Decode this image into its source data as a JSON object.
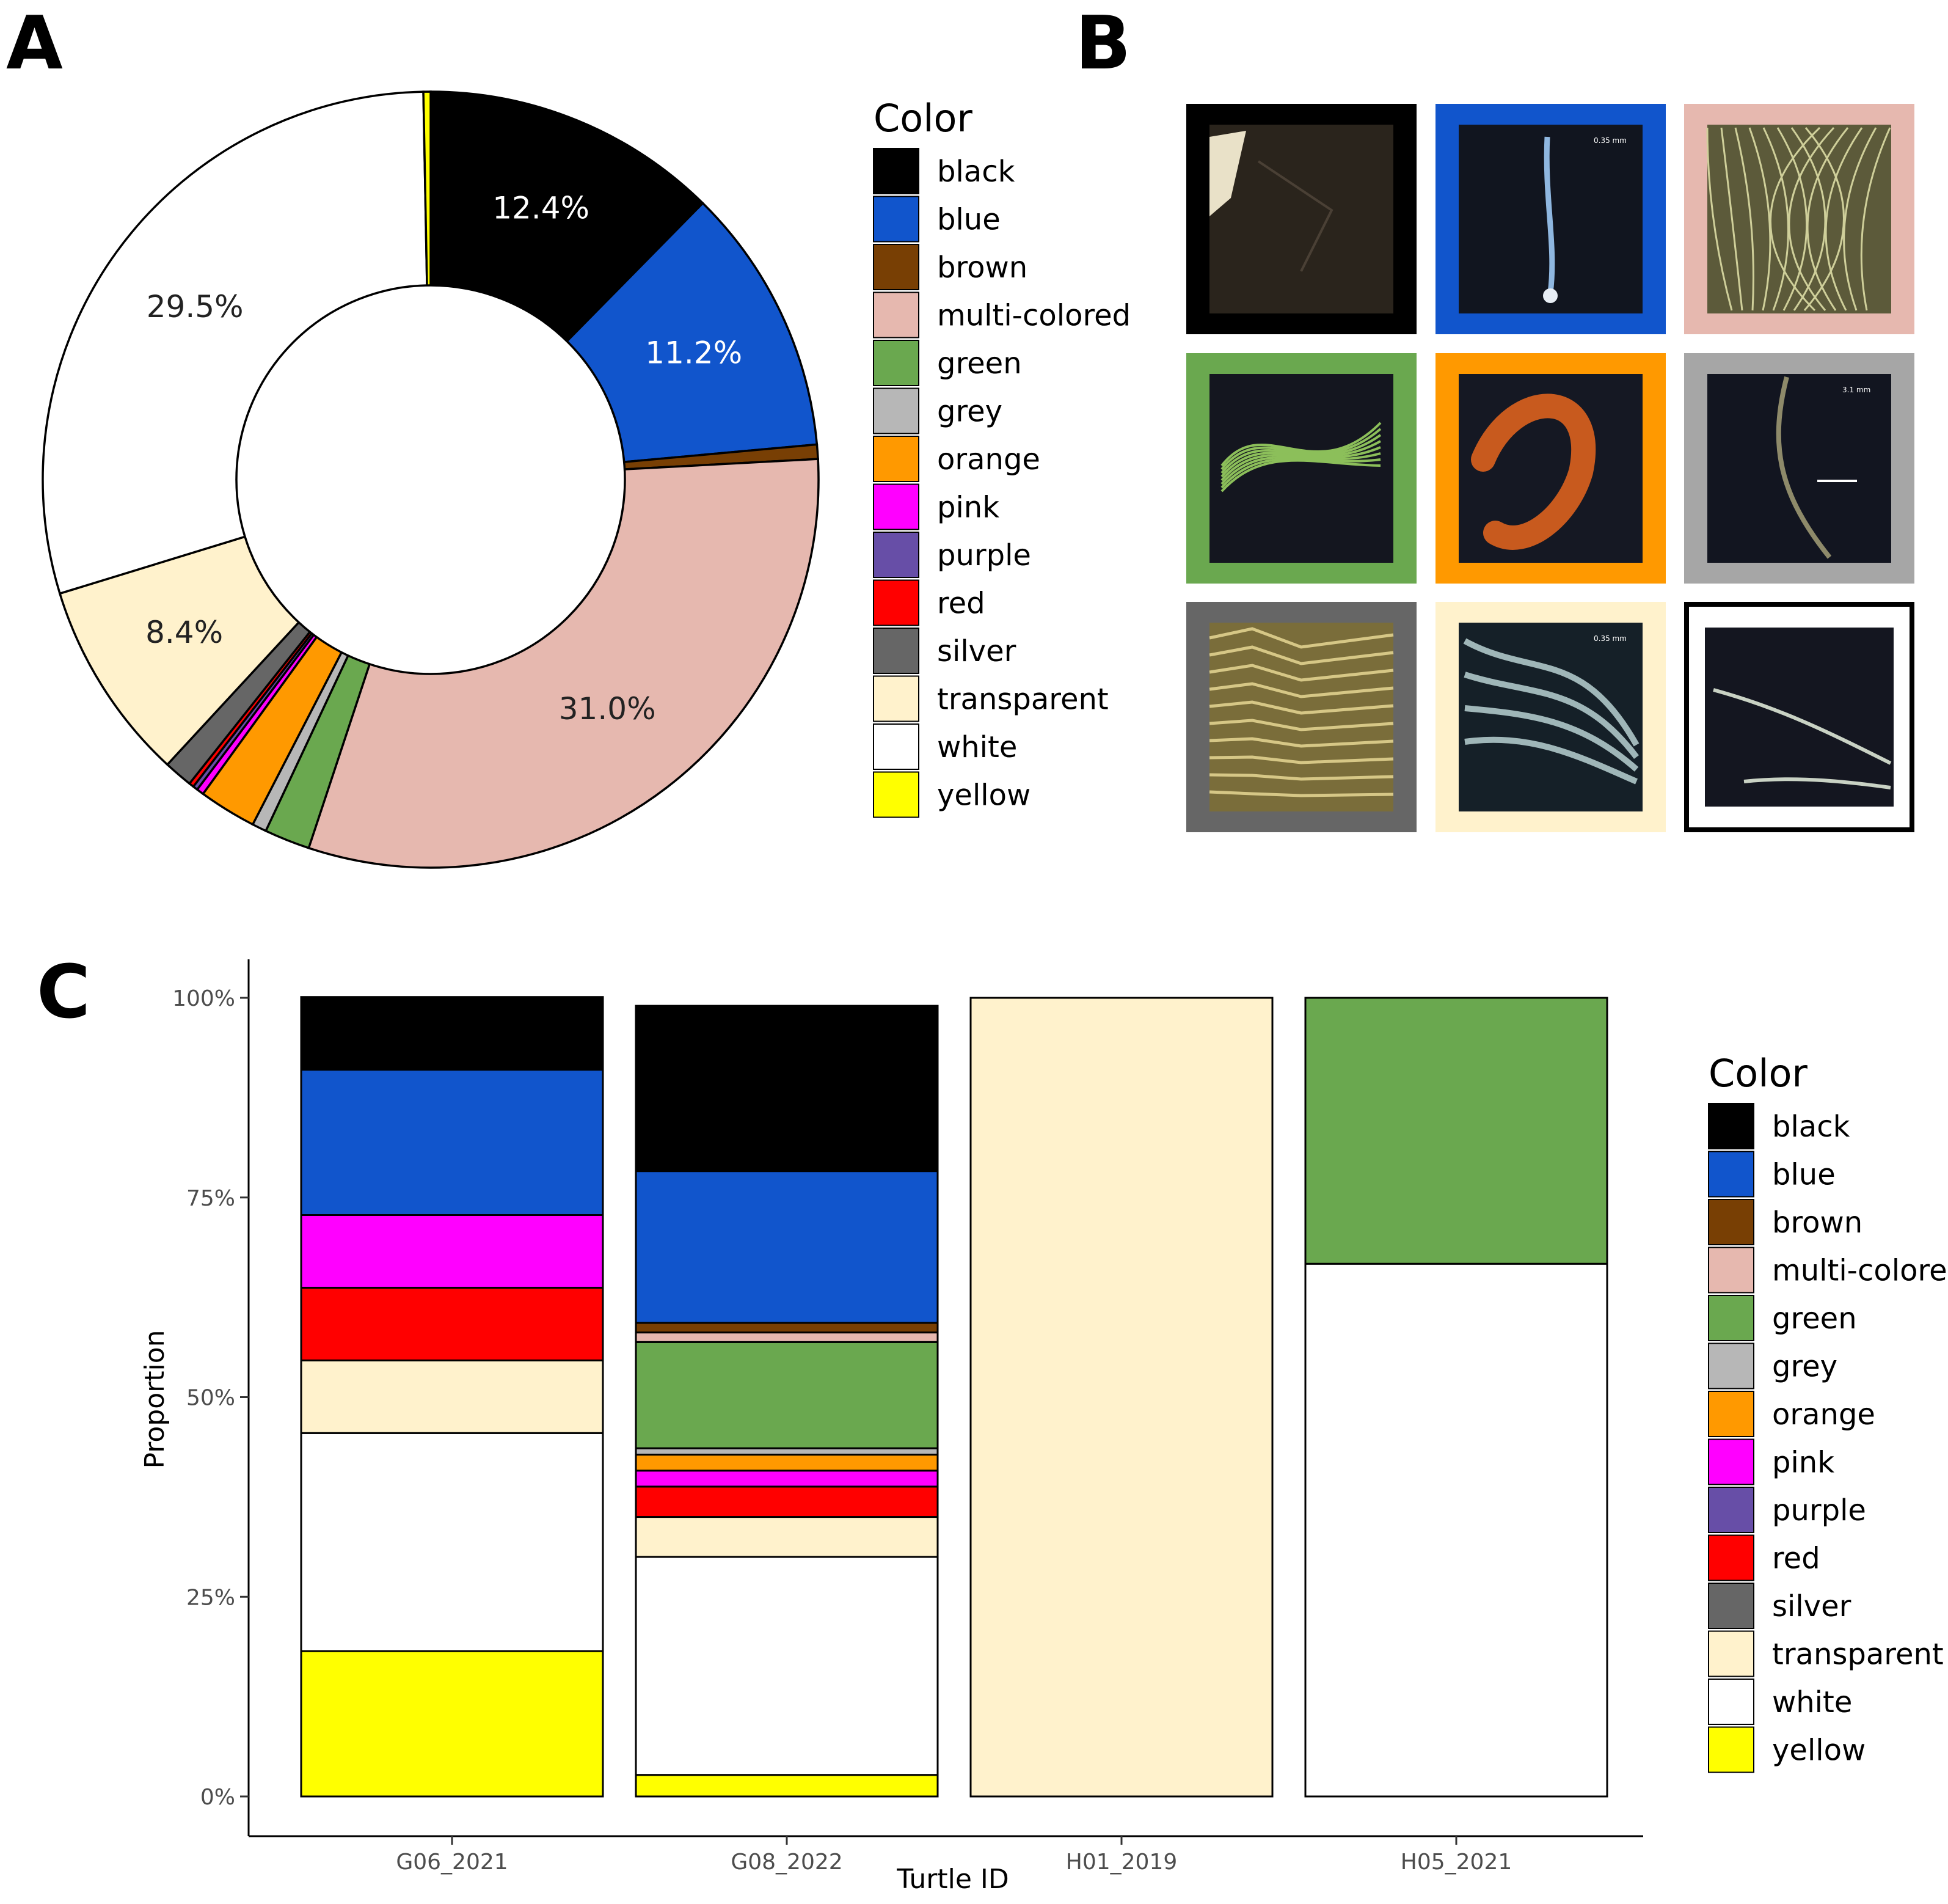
{
  "panels": {
    "a": "A",
    "b": "B",
    "c": "C"
  },
  "colors": {
    "black": "#000000",
    "blue": "#1155cc",
    "brown": "#783f04",
    "multi-colored": "#e6b8af",
    "green": "#6aa84f",
    "grey": "#b7b7b7",
    "orange": "#ff9900",
    "pink": "#ff00ff",
    "purple": "#674ea7",
    "red": "#ff0000",
    "silver": "#666666",
    "transparent": "#fff2cc",
    "white": "#ffffff",
    "yellow": "#ffff00"
  },
  "legend": {
    "title": "Color",
    "items": [
      "black",
      "blue",
      "brown",
      "multi-colored",
      "green",
      "grey",
      "orange",
      "pink",
      "purple",
      "red",
      "silver",
      "transparent",
      "white",
      "yellow"
    ]
  },
  "photo_grid": [
    {
      "label": "black",
      "frame": "#000000",
      "bg": "#2a241c",
      "scale_text": ""
    },
    {
      "label": "blue",
      "frame": "#1155cc",
      "bg": "#11151f",
      "scale_text": "0.35 mm"
    },
    {
      "label": "multi-colored",
      "frame": "#e6b8af",
      "bg": "#5c5a3a",
      "scale_text": ""
    },
    {
      "label": "green",
      "frame": "#6aa84f",
      "bg": "#14161f",
      "scale_text": ""
    },
    {
      "label": "orange",
      "frame": "#ff9900",
      "bg": "#151823",
      "scale_text": ""
    },
    {
      "label": "grey",
      "frame": "#a6a6a6",
      "bg": "#121520",
      "scale_text": "3.1 mm"
    },
    {
      "label": "silver",
      "frame": "#666666",
      "bg": "#7a6d3a",
      "scale_text": ""
    },
    {
      "label": "transparent",
      "frame": "#fff2cc",
      "bg": "#152028",
      "scale_text": "0.35 mm"
    },
    {
      "label": "white",
      "frame": "#000000",
      "bg": "#141620",
      "scale_text": ""
    }
  ],
  "chart_data": [
    {
      "type": "pie",
      "style": "donut",
      "title": "",
      "legend_title": "Color",
      "slices": [
        {
          "label": "black",
          "value": 12.4,
          "display": "12.4%"
        },
        {
          "label": "blue",
          "value": 11.2,
          "display": "11.2%"
        },
        {
          "label": "brown",
          "value": 0.6,
          "display": ""
        },
        {
          "label": "multi-colored",
          "value": 31.0,
          "display": "31.0%"
        },
        {
          "label": "green",
          "value": 1.9,
          "display": ""
        },
        {
          "label": "grey",
          "value": 0.6,
          "display": ""
        },
        {
          "label": "orange",
          "value": 2.4,
          "display": ""
        },
        {
          "label": "pink",
          "value": 0.3,
          "display": ""
        },
        {
          "label": "purple",
          "value": 0.2,
          "display": ""
        },
        {
          "label": "red",
          "value": 0.2,
          "display": ""
        },
        {
          "label": "silver",
          "value": 1.2,
          "display": ""
        },
        {
          "label": "transparent",
          "value": 8.4,
          "display": "8.4%"
        },
        {
          "label": "white",
          "value": 29.5,
          "display": "29.5%"
        },
        {
          "label": "yellow",
          "value": 0.3,
          "display": ""
        }
      ]
    },
    {
      "type": "bar",
      "stacked": true,
      "xlabel": "Turtle ID",
      "ylabel": "Proportion",
      "ylim": [
        0,
        1
      ],
      "yticks": [
        "0%",
        "25%",
        "50%",
        "75%",
        "100%"
      ],
      "legend_title": "Color",
      "categories": [
        "G06_2021",
        "G08_2022",
        "H01_2019",
        "H05_2021"
      ],
      "series": [
        {
          "name": "black",
          "values": [
            0.091,
            0.207,
            0,
            0
          ]
        },
        {
          "name": "blue",
          "values": [
            0.182,
            0.19,
            0,
            0
          ]
        },
        {
          "name": "brown",
          "values": [
            0,
            0.012,
            0,
            0
          ]
        },
        {
          "name": "multi-colored",
          "values": [
            0,
            0.012,
            0,
            0
          ]
        },
        {
          "name": "green",
          "values": [
            0,
            0.133,
            0,
            0.333
          ]
        },
        {
          "name": "grey",
          "values": [
            0,
            0.008,
            0,
            0
          ]
        },
        {
          "name": "orange",
          "values": [
            0,
            0.02,
            0,
            0
          ]
        },
        {
          "name": "pink",
          "values": [
            0.091,
            0.02,
            0,
            0
          ]
        },
        {
          "name": "purple",
          "values": [
            0,
            0,
            0,
            0
          ]
        },
        {
          "name": "red",
          "values": [
            0.091,
            0.038,
            0,
            0
          ]
        },
        {
          "name": "silver",
          "values": [
            0,
            0,
            0,
            0
          ]
        },
        {
          "name": "transparent",
          "values": [
            0.091,
            0.05,
            1.0,
            0
          ]
        },
        {
          "name": "white",
          "values": [
            0.273,
            0.273,
            0,
            0.667
          ]
        },
        {
          "name": "yellow",
          "values": [
            0.182,
            0.027,
            0,
            0
          ]
        }
      ]
    }
  ]
}
